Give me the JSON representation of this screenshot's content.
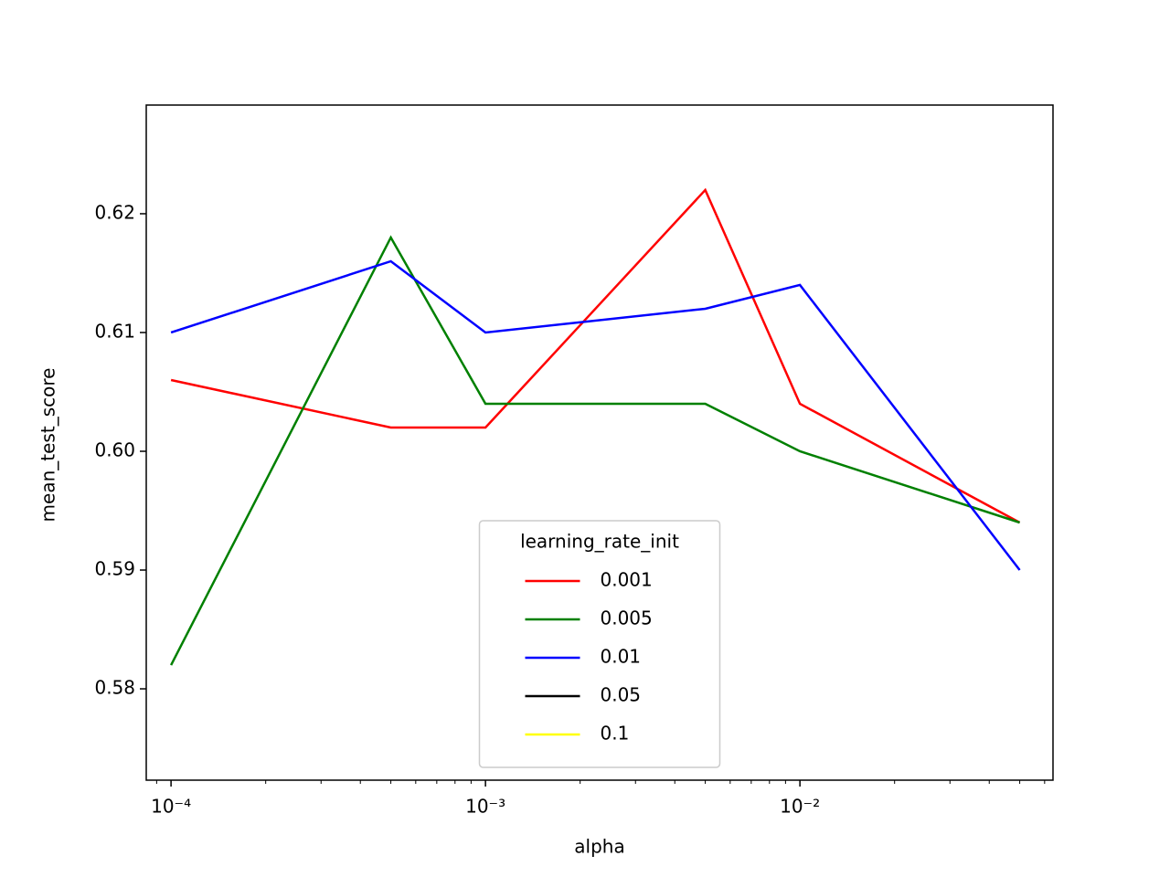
{
  "chart_data": {
    "type": "line",
    "x_label": "alpha",
    "y_label": "mean_test_score",
    "x": [
      0.0001,
      0.0005,
      0.001,
      0.005,
      0.01,
      0.05
    ],
    "series": [
      {
        "name": "0.001",
        "color": "#ff0000",
        "values": [
          0.606,
          0.602,
          0.602,
          0.622,
          0.604,
          0.594
        ]
      },
      {
        "name": "0.005",
        "color": "#008000",
        "values": [
          0.582,
          0.618,
          0.604,
          0.604,
          0.6,
          0.594
        ]
      },
      {
        "name": "0.01",
        "color": "#0000ff",
        "values": [
          0.61,
          0.616,
          0.61,
          0.612,
          0.614,
          0.59
        ]
      },
      {
        "name": "0.05",
        "color": "#000000",
        "values": [
          null,
          null,
          null,
          null,
          null,
          null
        ]
      },
      {
        "name": "0.1",
        "color": "#ffff00",
        "values": [
          null,
          null,
          null,
          null,
          null,
          null
        ]
      }
    ],
    "legend_title": "learning_rate_init",
    "legend_loc": "lower center",
    "xscale": "log",
    "xlim": [
      8.34e-05,
      0.0638
    ],
    "xticks": [
      {
        "value": 0.0001,
        "label": "10⁻⁴"
      },
      {
        "value": 0.001,
        "label": "10⁻³"
      },
      {
        "value": 0.01,
        "label": "10⁻²"
      }
    ],
    "xticks_minor": [
      9e-05,
      0.0002,
      0.0003,
      0.0004,
      0.0005,
      0.0006,
      0.0007,
      0.0008,
      0.0009,
      0.002,
      0.003,
      0.004,
      0.005,
      0.006,
      0.007,
      0.008,
      0.009,
      0.02,
      0.03,
      0.04,
      0.05,
      0.06
    ],
    "ylim": [
      0.57231,
      0.62915
    ],
    "yticks": [
      0.58,
      0.59,
      {
        "value": 0.6,
        "label": "0.60"
      },
      0.61,
      0.62
    ],
    "grid": false
  }
}
